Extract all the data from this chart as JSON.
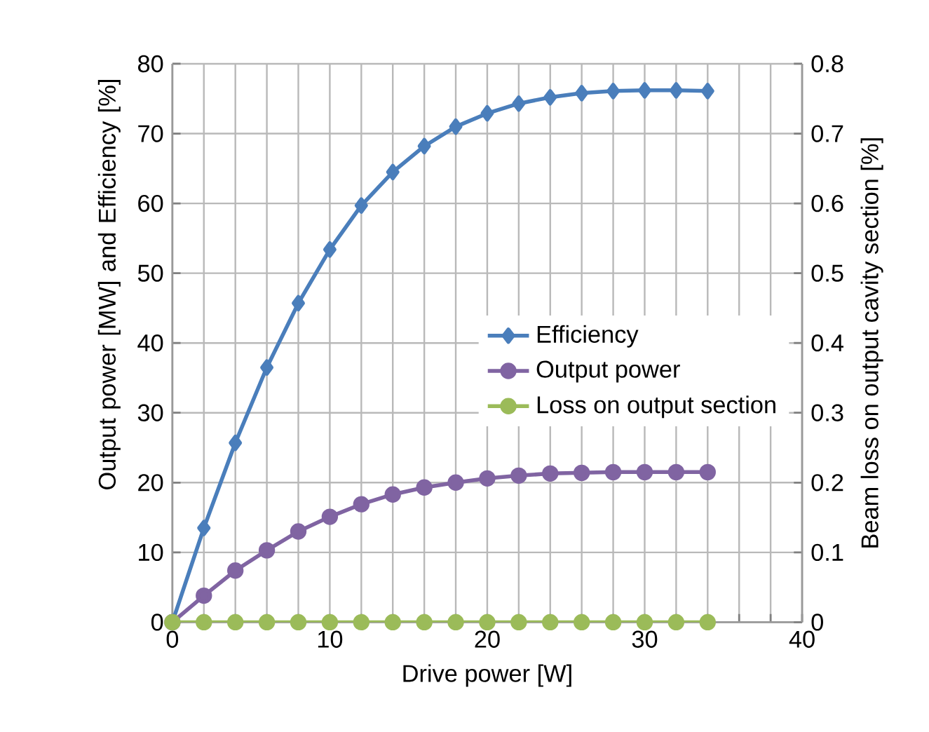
{
  "chart_data": {
    "type": "line",
    "xlabel": "Drive power  [W]",
    "ylabel": "Output power [MW] and Efficiency [%]",
    "y2label": "Beam loss on output cavity section [%]",
    "x": [
      0,
      2,
      4,
      6,
      8,
      10,
      12,
      14,
      16,
      18,
      20,
      22,
      24,
      26,
      28,
      30,
      32,
      34
    ],
    "series": [
      {
        "name": "Efficiency",
        "color": "#4a7ebb",
        "marker": "diamond",
        "values": [
          0,
          13.5,
          25.7,
          36.5,
          45.7,
          53.4,
          59.7,
          64.5,
          68.2,
          71.0,
          72.9,
          74.3,
          75.2,
          75.8,
          76.1,
          76.2,
          76.2,
          76.1
        ]
      },
      {
        "name": "Output power",
        "color": "#8064a2",
        "marker": "circle",
        "values": [
          0,
          3.8,
          7.4,
          10.3,
          13.0,
          15.1,
          16.9,
          18.3,
          19.3,
          20.0,
          20.6,
          21.0,
          21.3,
          21.4,
          21.5,
          21.5,
          21.5,
          21.5
        ]
      },
      {
        "name": "Loss on output section",
        "color": "#9bbb59",
        "marker": "circle",
        "axis": "y2",
        "values": [
          0,
          0,
          0,
          0,
          0,
          0,
          0,
          0,
          0,
          0,
          0,
          0,
          0,
          0,
          0,
          0,
          0,
          0
        ]
      }
    ],
    "xlim": [
      0,
      40
    ],
    "xticks": [
      0,
      {
        "value": 2,
        "label": null
      },
      {
        "value": 4,
        "label": null
      },
      {
        "value": 6,
        "label": null
      },
      {
        "value": 8,
        "label": null
      },
      10,
      {
        "value": 12,
        "label": null
      },
      {
        "value": 14,
        "label": null
      },
      {
        "value": 16,
        "label": null
      },
      {
        "value": 18,
        "label": null
      },
      20,
      {
        "value": 22,
        "label": null
      },
      {
        "value": 24,
        "label": null
      },
      {
        "value": 26,
        "label": null
      },
      {
        "value": 28,
        "label": null
      },
      30,
      {
        "value": 32,
        "label": null
      },
      {
        "value": 34,
        "label": null
      },
      {
        "value": 36,
        "label": null
      },
      {
        "value": 38,
        "label": null
      },
      40
    ],
    "ylim": [
      0,
      80
    ],
    "yticks": [
      0,
      10,
      20,
      30,
      40,
      50,
      60,
      70,
      80
    ],
    "y2lim": [
      0,
      0.8
    ],
    "y2ticks": [
      0,
      0.1,
      0.2,
      0.3,
      0.4,
      0.5,
      0.6,
      0.7,
      0.8
    ],
    "grid": true,
    "legend": "right",
    "line_style": "solid"
  }
}
